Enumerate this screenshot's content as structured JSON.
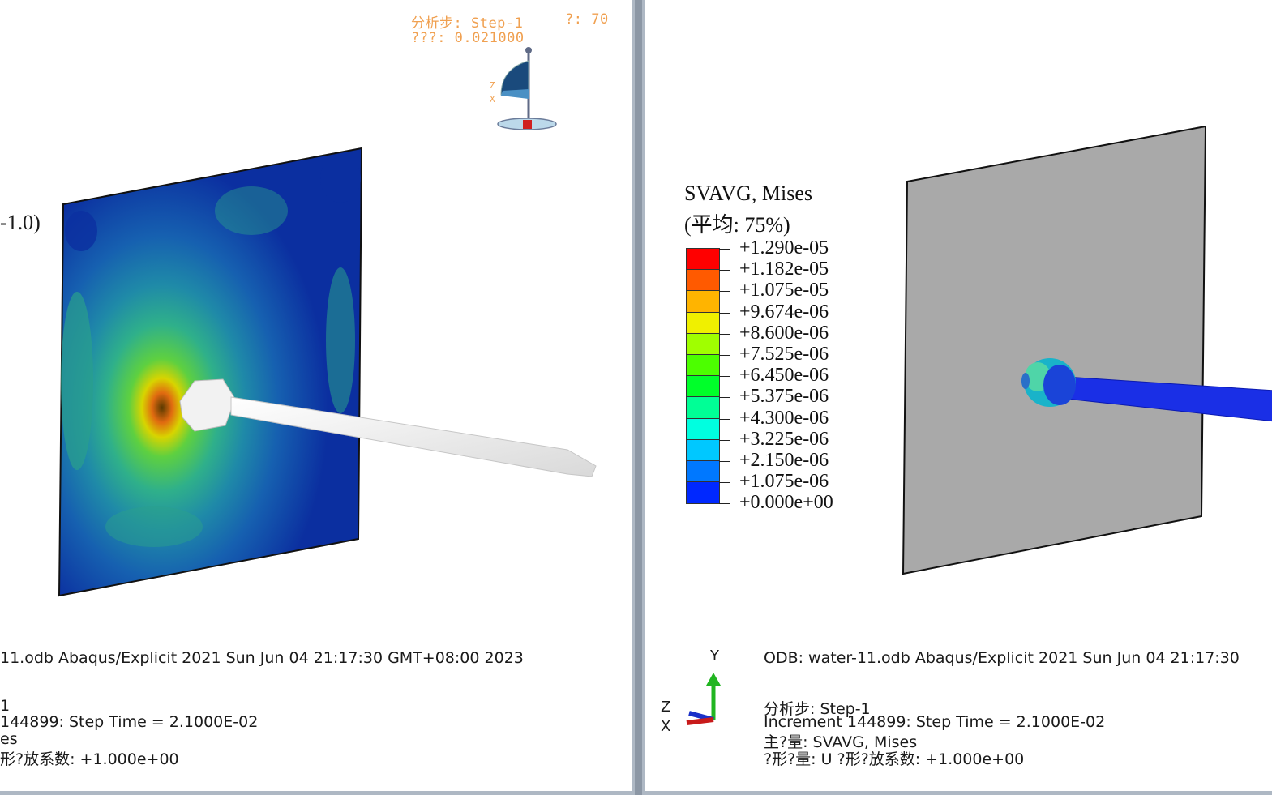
{
  "left": {
    "status": {
      "step_label": "分析步: Step-1",
      "frame_label": "?: 70",
      "time_label": "???: 0.021000"
    },
    "deform_scale_fragment": "-1.0)",
    "triad": {
      "z": "Z",
      "x": "X"
    },
    "info": {
      "odb_line": "11.odb    Abaqus/Explicit 2021    Sun Jun 04 21:17:30 GMT+08:00 2023",
      "step_line": "1",
      "increment_line": "144899: Step Time =   2.1000E-02",
      "var_line": "es",
      "deform_line": "形?放系数: +1.000e+00"
    }
  },
  "right": {
    "legend": {
      "title": "SVAVG, Mises",
      "subtitle": "(平均: 75%)",
      "values": [
        "+1.290e-05",
        "+1.182e-05",
        "+1.075e-05",
        "+9.674e-06",
        "+8.600e-06",
        "+7.525e-06",
        "+6.450e-06",
        "+5.375e-06",
        "+4.300e-06",
        "+3.225e-06",
        "+2.150e-06",
        "+1.075e-06",
        "+0.000e+00"
      ],
      "colors": [
        "#ff0000",
        "#ff5a00",
        "#ffb400",
        "#f0f000",
        "#a0ff00",
        "#4cff00",
        "#00ff2a",
        "#00ff96",
        "#00ffe0",
        "#00c8ff",
        "#0078ff",
        "#0028ff",
        "#0000ff"
      ]
    },
    "axes": {
      "y": "Y",
      "z": "Z",
      "x": "X"
    },
    "info": {
      "odb_line": "ODB: water-11.odb    Abaqus/Explicit 2021    Sun Jun 04 21:17:30",
      "step_line": "分析步: Step-1",
      "increment_line": "Increment    144899: Step Time =   2.1000E-02",
      "var_line": "主?量: SVAVG, Mises",
      "deform_line": "?形?量: U   ?形?放系数: +1.000e+00"
    }
  }
}
